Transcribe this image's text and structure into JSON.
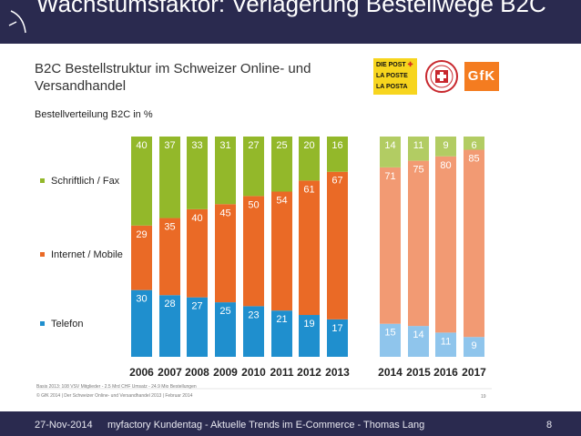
{
  "slide": {
    "title": "Wachstumsfaktor: Verlagerung Bestellwege B2C",
    "footer_date": "27-Nov-2014",
    "footer_text": "myfactory Kundentag - Aktuelle Trends im E-Commerce - Thomas Lang",
    "page_number": "8"
  },
  "logos": {
    "post_lines": [
      "DIE POST",
      "LA POSTE",
      "LA POSTA"
    ],
    "gfk": "GfK"
  },
  "footnotes": {
    "line1": "Basis 2013: 108 VSV Mitglieder  - 2.5 Mrd CHF Umsatz - 24.9 Mio Bestellungen",
    "line2": "© GfK 2014 | Der Schweizer Online- und Versandhandel 2013 | Februar 2014",
    "page": "19"
  },
  "colors": {
    "header_bg": "#2a2a4f",
    "Telefon": "#1f8fce",
    "Internet / Mobile": "#ea6a26",
    "Schriftlich / Fax": "#93b82a",
    "Telefon_forecast": "#8fc5ec",
    "Internet / Mobile_forecast": "#f29a73",
    "Schriftlich / Fax_forecast": "#b2cc63"
  },
  "chart_data": {
    "type": "bar",
    "stacked": true,
    "title": "B2C Bestellstruktur im Schweizer Online- und Versandhandel",
    "ylabel": "Bestellverteilung B2C in %",
    "categories": [
      "2006",
      "2007",
      "2008",
      "2009",
      "2010",
      "2011",
      "2012",
      "2013",
      "2014",
      "2015",
      "2016",
      "2017"
    ],
    "forecast_categories": [
      "2014",
      "2015",
      "2016",
      "2017"
    ],
    "series": [
      {
        "name": "Telefon",
        "values": [
          30,
          28,
          27,
          25,
          23,
          21,
          19,
          17,
          15,
          14,
          11,
          9
        ]
      },
      {
        "name": "Internet / Mobile",
        "values": [
          29,
          35,
          40,
          45,
          50,
          54,
          61,
          67,
          71,
          75,
          80,
          85
        ]
      },
      {
        "name": "Schriftlich / Fax",
        "values": [
          40,
          37,
          33,
          31,
          27,
          25,
          20,
          16,
          14,
          11,
          9,
          6
        ]
      }
    ],
    "ylim": [
      0,
      100
    ],
    "legend_position": "left"
  }
}
